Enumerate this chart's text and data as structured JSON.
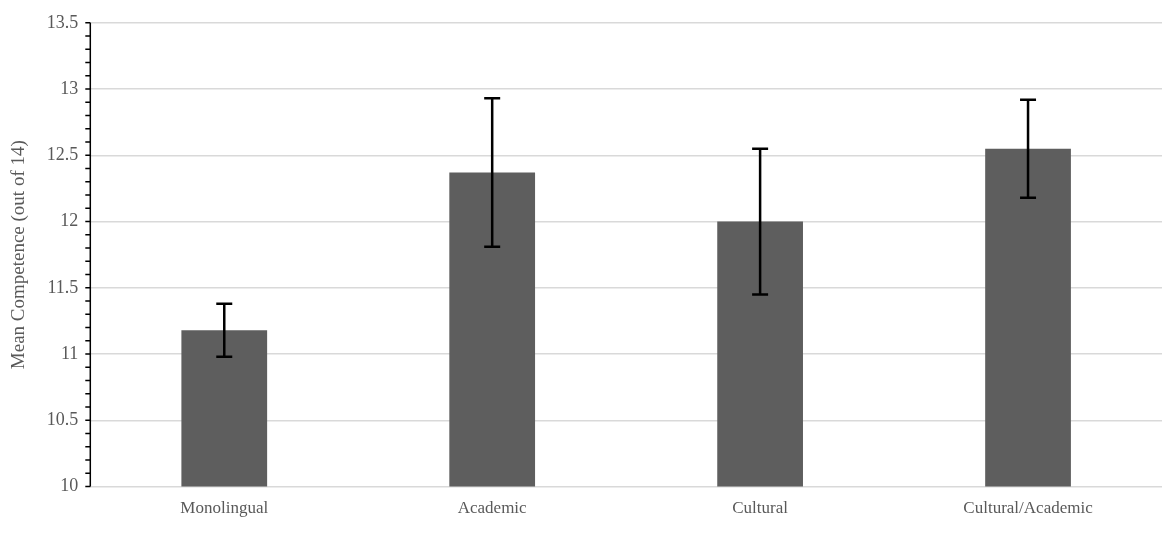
{
  "chart_data": {
    "type": "bar",
    "ylabel": "Mean Competence (out of 14)",
    "categories": [
      "Monolingual",
      "Academic",
      "Cultural",
      "Cultural/Academic"
    ],
    "values": [
      11.18,
      12.37,
      12.0,
      12.55
    ],
    "errors": [
      0.2,
      0.56,
      0.55,
      0.37
    ],
    "color": "#5e5e5e",
    "ylim": [
      10,
      13.5
    ],
    "yticks": [
      10,
      {
        "value": 10.1,
        "label": null
      },
      {
        "value": 10.2,
        "label": null
      },
      {
        "value": 10.3,
        "label": null
      },
      {
        "value": 10.4,
        "label": null
      },
      10.5,
      {
        "value": 10.6,
        "label": null
      },
      {
        "value": 10.7,
        "label": null
      },
      {
        "value": 10.8,
        "label": null
      },
      {
        "value": 10.9,
        "label": null
      },
      11,
      {
        "value": 11.1,
        "label": null
      },
      {
        "value": 11.2,
        "label": null
      },
      {
        "value": 11.3,
        "label": null
      },
      {
        "value": 11.4,
        "label": null
      },
      11.5,
      {
        "value": 11.6,
        "label": null
      },
      {
        "value": 11.7,
        "label": null
      },
      {
        "value": 11.8,
        "label": null
      },
      {
        "value": 11.9,
        "label": null
      },
      12,
      {
        "value": 12.1,
        "label": null
      },
      {
        "value": 12.2,
        "label": null
      },
      {
        "value": 12.3,
        "label": null
      },
      {
        "value": 12.4,
        "label": null
      },
      12.5,
      {
        "value": 12.6,
        "label": null
      },
      {
        "value": 12.7,
        "label": null
      },
      {
        "value": 12.8,
        "label": null
      },
      {
        "value": 12.9,
        "label": null
      },
      13,
      {
        "value": 13.1,
        "label": null
      },
      {
        "value": 13.2,
        "label": null
      },
      {
        "value": 13.3,
        "label": null
      },
      {
        "value": 13.4,
        "label": null
      },
      13.5
    ],
    "grid": "y"
  }
}
